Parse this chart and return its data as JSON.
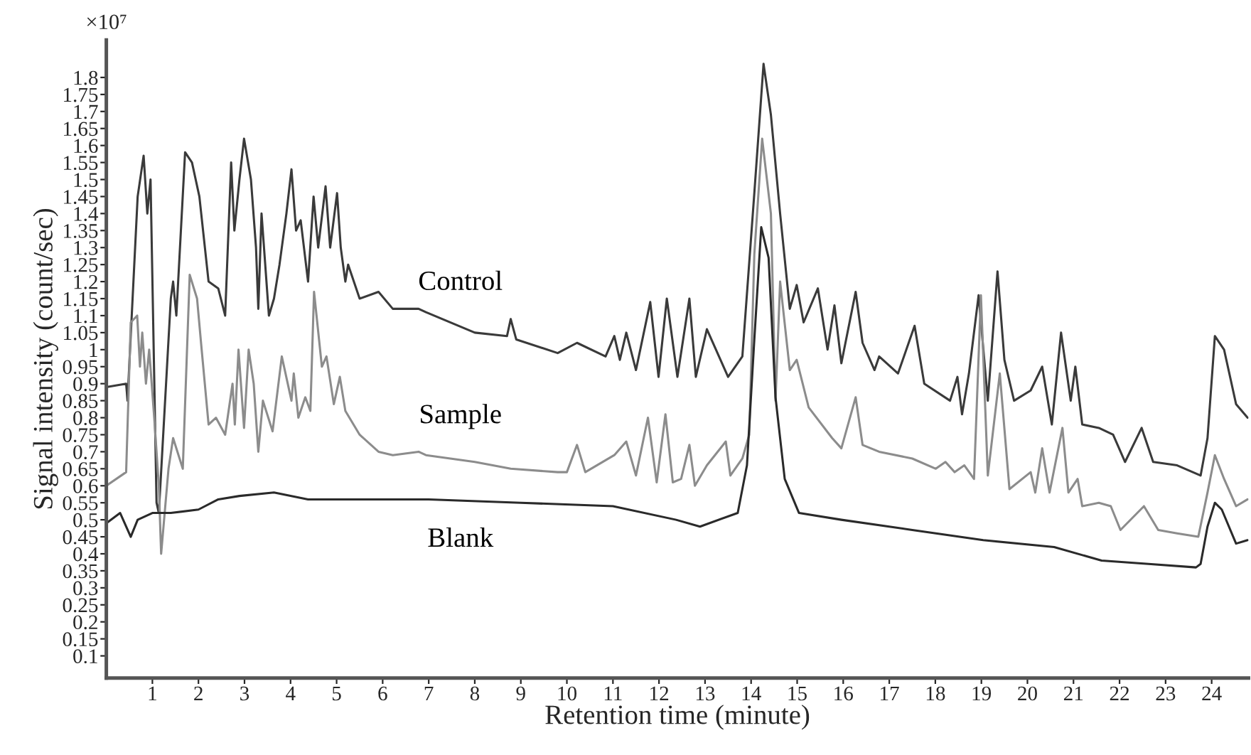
{
  "chart_data": {
    "type": "line",
    "xlabel": "Retention time (minute)",
    "ylabel": "Signal intensity (count/sec)",
    "annotations": [
      "×10⁷"
    ],
    "xlim": [
      0,
      24.8
    ],
    "xticks": [
      1,
      2,
      3,
      4,
      5,
      6,
      7,
      8,
      9,
      10,
      11,
      12,
      13,
      14,
      15,
      16,
      17,
      18,
      19,
      20,
      21,
      22,
      23,
      24
    ],
    "ylim": [
      0.035,
      1.91
    ],
    "yticks": [
      0.1,
      0.15,
      0.2,
      0.25,
      0.3,
      0.35,
      0.4,
      0.45,
      0.5,
      0.55,
      0.6,
      0.65,
      0.7,
      0.75,
      0.8,
      0.85,
      0.9,
      0.95,
      1,
      1.05,
      1.1,
      1.15,
      1.2,
      1.25,
      1.3,
      1.35,
      1.4,
      1.45,
      1.5,
      1.55,
      1.6,
      1.65,
      1.7,
      1.75,
      1.8
    ],
    "grid": false,
    "legend": false,
    "marker": "none",
    "line_style": "solid",
    "series": [
      {
        "name": "Control",
        "color": "#3a3a3a",
        "x": [
          0,
          0.43,
          0.46,
          0.68,
          0.81,
          0.89,
          0.96,
          1.09,
          1.14,
          1.4,
          1.45,
          1.52,
          1.71,
          1.86,
          2.02,
          2.22,
          2.43,
          2.58,
          2.71,
          2.78,
          2.89,
          2.99,
          3.14,
          3.25,
          3.3,
          3.37,
          3.53,
          3.64,
          3.76,
          3.91,
          4.02,
          4.12,
          4.22,
          4.38,
          4.5,
          4.6,
          4.76,
          4.86,
          5.01,
          5.09,
          5.19,
          5.25,
          5.5,
          5.91,
          6.22,
          6.78,
          6.94,
          8.0,
          8.7,
          8.78,
          8.9,
          9.8,
          10.22,
          10.84,
          11.03,
          11.15,
          11.29,
          11.5,
          11.81,
          11.99,
          12.17,
          12.4,
          12.66,
          12.8,
          13.04,
          13.5,
          13.81,
          14.07,
          14.27,
          14.43,
          14.63,
          14.84,
          14.99,
          15.14,
          15.45,
          15.66,
          15.81,
          15.96,
          16.27,
          16.42,
          16.68,
          16.78,
          17.19,
          17.55,
          17.76,
          18.32,
          18.48,
          18.58,
          18.73,
          18.94,
          19.14,
          19.35,
          19.5,
          19.71,
          20.07,
          20.32,
          20.53,
          20.73,
          20.94,
          21.04,
          21.19,
          21.55,
          21.86,
          22.12,
          22.48,
          22.73,
          23.25,
          23.76,
          23.91,
          24.07,
          24.27,
          24.53,
          24.78
        ],
        "values": [
          0.89,
          0.9,
          0.85,
          1.45,
          1.57,
          1.4,
          1.5,
          0.55,
          0.52,
          1.15,
          1.2,
          1.1,
          1.58,
          1.55,
          1.45,
          1.2,
          1.18,
          1.1,
          1.55,
          1.35,
          1.5,
          1.62,
          1.5,
          1.3,
          1.12,
          1.4,
          1.1,
          1.15,
          1.25,
          1.4,
          1.53,
          1.35,
          1.38,
          1.2,
          1.45,
          1.3,
          1.48,
          1.3,
          1.46,
          1.3,
          1.2,
          1.25,
          1.15,
          1.17,
          1.12,
          1.12,
          1.11,
          1.05,
          1.04,
          1.09,
          1.03,
          0.99,
          1.02,
          0.98,
          1.04,
          0.97,
          1.05,
          0.94,
          1.14,
          0.92,
          1.15,
          0.92,
          1.15,
          0.92,
          1.06,
          0.92,
          0.98,
          1.46,
          1.84,
          1.69,
          1.4,
          1.12,
          1.19,
          1.08,
          1.18,
          1.0,
          1.13,
          0.96,
          1.17,
          1.02,
          0.94,
          0.98,
          0.93,
          1.07,
          0.9,
          0.85,
          0.92,
          0.81,
          0.93,
          1.16,
          0.85,
          1.23,
          0.97,
          0.85,
          0.88,
          0.95,
          0.78,
          1.05,
          0.85,
          0.95,
          0.78,
          0.77,
          0.75,
          0.67,
          0.77,
          0.67,
          0.66,
          0.63,
          0.74,
          1.04,
          1.0,
          0.84,
          0.8
        ]
      },
      {
        "name": "Sample",
        "color": "#8c8c8c",
        "x": [
          0,
          0.43,
          0.53,
          0.67,
          0.73,
          0.78,
          0.86,
          0.93,
          1.04,
          1.14,
          1.19,
          1.35,
          1.45,
          1.66,
          1.81,
          1.97,
          2.07,
          2.22,
          2.38,
          2.58,
          2.74,
          2.79,
          2.87,
          2.99,
          3.09,
          3.2,
          3.3,
          3.4,
          3.61,
          3.81,
          4.02,
          4.07,
          4.17,
          4.32,
          4.43,
          4.51,
          4.68,
          4.78,
          4.94,
          5.07,
          5.19,
          5.5,
          5.91,
          6.22,
          6.78,
          6.94,
          8.0,
          8.78,
          9.8,
          10.0,
          10.22,
          10.4,
          11.03,
          11.29,
          11.5,
          11.76,
          11.95,
          12.14,
          12.3,
          12.48,
          12.66,
          12.78,
          13.04,
          13.45,
          13.55,
          13.81,
          13.96,
          14.07,
          14.24,
          14.43,
          14.53,
          14.63,
          14.84,
          14.99,
          15.25,
          15.76,
          15.96,
          16.27,
          16.42,
          16.78,
          17.5,
          18.01,
          18.22,
          18.42,
          18.63,
          18.84,
          18.99,
          19.14,
          19.4,
          19.61,
          20.07,
          20.17,
          20.32,
          20.48,
          20.76,
          20.89,
          21.09,
          21.19,
          21.55,
          21.81,
          22.02,
          22.53,
          22.84,
          23.25,
          23.71,
          23.91,
          24.07,
          24.27,
          24.53,
          24.78
        ],
        "values": [
          0.6,
          0.64,
          1.08,
          1.1,
          0.95,
          1.05,
          0.9,
          1.0,
          0.8,
          0.6,
          0.4,
          0.65,
          0.74,
          0.65,
          1.22,
          1.15,
          1.0,
          0.78,
          0.8,
          0.75,
          0.9,
          0.78,
          1.0,
          0.77,
          1.0,
          0.9,
          0.7,
          0.85,
          0.76,
          0.98,
          0.85,
          0.93,
          0.8,
          0.86,
          0.82,
          1.17,
          0.95,
          0.98,
          0.84,
          0.92,
          0.82,
          0.75,
          0.7,
          0.69,
          0.7,
          0.69,
          0.67,
          0.65,
          0.64,
          0.64,
          0.72,
          0.64,
          0.69,
          0.73,
          0.63,
          0.8,
          0.61,
          0.81,
          0.61,
          0.62,
          0.72,
          0.6,
          0.66,
          0.73,
          0.63,
          0.68,
          0.75,
          1.28,
          1.62,
          1.4,
          0.85,
          1.2,
          0.94,
          0.97,
          0.83,
          0.74,
          0.71,
          0.86,
          0.72,
          0.7,
          0.68,
          0.65,
          0.67,
          0.64,
          0.66,
          0.62,
          1.16,
          0.63,
          0.93,
          0.59,
          0.64,
          0.58,
          0.71,
          0.58,
          0.77,
          0.58,
          0.62,
          0.54,
          0.55,
          0.54,
          0.47,
          0.54,
          0.47,
          0.46,
          0.45,
          0.58,
          0.69,
          0.62,
          0.54,
          0.56
        ]
      },
      {
        "name": "Blank",
        "color": "#2a2a2a",
        "x": [
          0,
          0.3,
          0.53,
          0.68,
          1.0,
          1.4,
          2.0,
          2.43,
          2.89,
          3.64,
          4.38,
          5.5,
          7.0,
          9.0,
          11.0,
          12.37,
          12.89,
          13.71,
          13.91,
          14.07,
          14.22,
          14.38,
          14.53,
          14.73,
          15.04,
          15.96,
          17.5,
          19.04,
          20.58,
          21.61,
          22.63,
          23.66,
          23.76,
          23.91,
          24.07,
          24.22,
          24.53,
          24.78
        ],
        "values": [
          0.49,
          0.52,
          0.45,
          0.5,
          0.52,
          0.52,
          0.53,
          0.56,
          0.57,
          0.58,
          0.56,
          0.56,
          0.56,
          0.55,
          0.54,
          0.5,
          0.48,
          0.52,
          0.66,
          1.03,
          1.36,
          1.27,
          0.86,
          0.62,
          0.52,
          0.5,
          0.47,
          0.44,
          0.42,
          0.38,
          0.37,
          0.36,
          0.37,
          0.48,
          0.55,
          0.53,
          0.43,
          0.44
        ]
      }
    ]
  }
}
